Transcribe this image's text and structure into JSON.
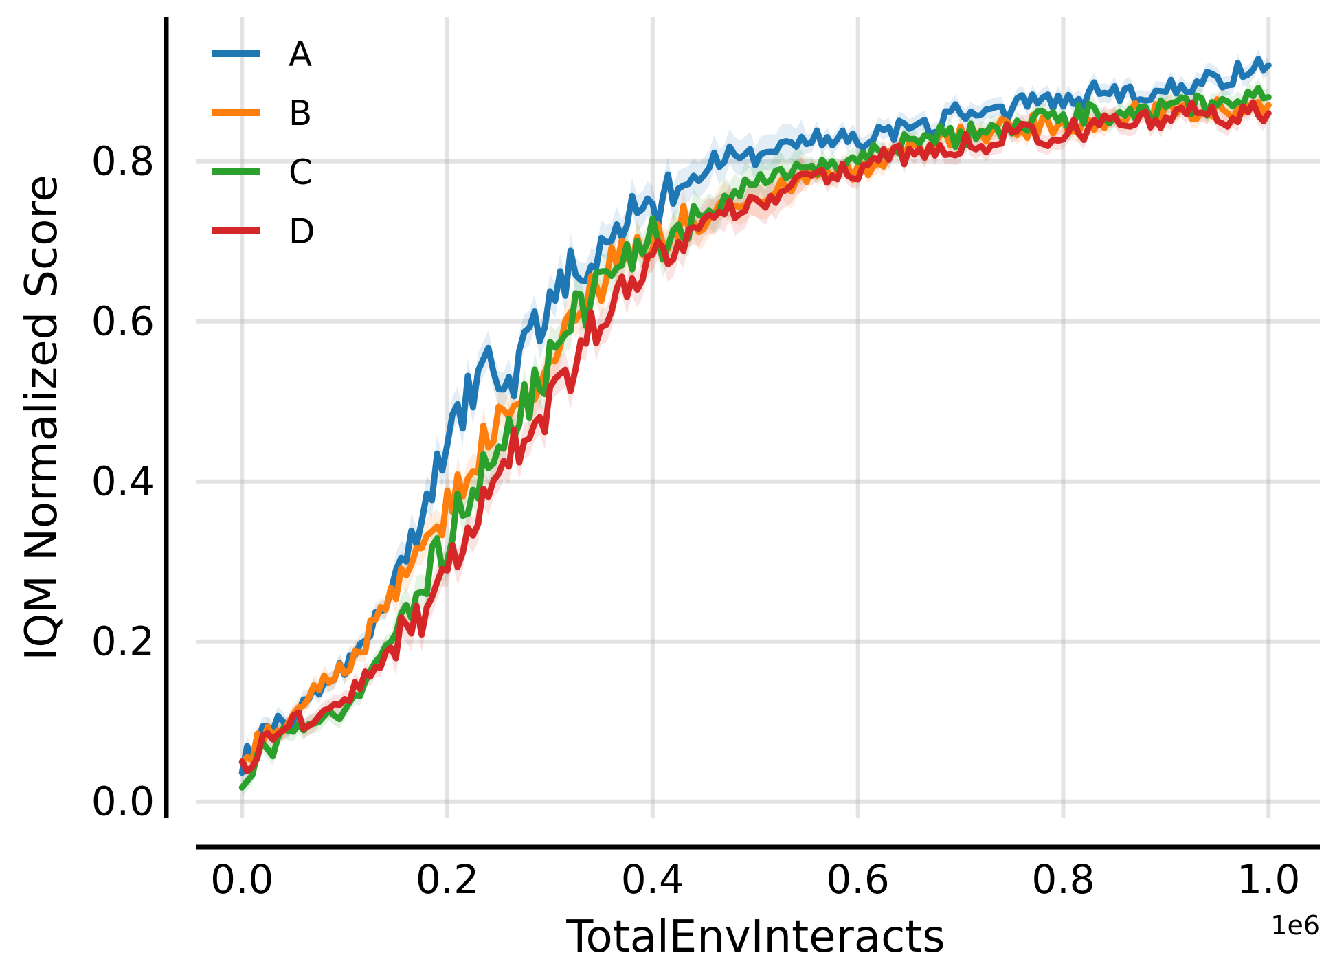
{
  "chart_data": {
    "type": "line",
    "xlabel": "TotalEnvInteracts",
    "ylabel": "IQM Normalized Score",
    "x_offset_label": "1e6",
    "xlim": [
      -0.045,
      1.05
    ],
    "ylim": [
      -0.02,
      0.98
    ],
    "xticks": [
      0.0,
      0.2,
      0.4,
      0.6,
      0.8,
      1.0
    ],
    "xtick_labels": [
      "0.0",
      "0.2",
      "0.4",
      "0.6",
      "0.8",
      "1.0"
    ],
    "yticks": [
      0.0,
      0.2,
      0.4,
      0.6,
      0.8
    ],
    "ytick_labels": [
      "0.0",
      "0.2",
      "0.4",
      "0.6",
      "0.8"
    ],
    "grid": true,
    "legend_position": "upper-left",
    "shaded_bands": true,
    "series": [
      {
        "name": "A",
        "color": "#1f77b4",
        "x": [
          0.0,
          0.02,
          0.04,
          0.06,
          0.08,
          0.1,
          0.12,
          0.14,
          0.16,
          0.18,
          0.2,
          0.22,
          0.24,
          0.26,
          0.28,
          0.3,
          0.32,
          0.34,
          0.36,
          0.38,
          0.4,
          0.42,
          0.44,
          0.46,
          0.48,
          0.5,
          0.52,
          0.54,
          0.56,
          0.58,
          0.6,
          0.62,
          0.64,
          0.66,
          0.68,
          0.7,
          0.72,
          0.74,
          0.76,
          0.78,
          0.8,
          0.82,
          0.84,
          0.86,
          0.88,
          0.9,
          0.92,
          0.94,
          0.96,
          0.98,
          1.0
        ],
        "y": [
          0.05,
          0.08,
          0.1,
          0.12,
          0.14,
          0.17,
          0.21,
          0.25,
          0.3,
          0.36,
          0.45,
          0.51,
          0.54,
          0.52,
          0.58,
          0.63,
          0.66,
          0.67,
          0.71,
          0.73,
          0.74,
          0.76,
          0.78,
          0.8,
          0.81,
          0.8,
          0.81,
          0.82,
          0.83,
          0.83,
          0.82,
          0.84,
          0.84,
          0.84,
          0.85,
          0.86,
          0.86,
          0.86,
          0.87,
          0.87,
          0.87,
          0.88,
          0.89,
          0.88,
          0.88,
          0.89,
          0.89,
          0.9,
          0.9,
          0.92,
          0.92
        ]
      },
      {
        "name": "B",
        "color": "#ff7f0e",
        "x": [
          0.0,
          0.02,
          0.04,
          0.06,
          0.08,
          0.1,
          0.12,
          0.14,
          0.16,
          0.18,
          0.2,
          0.22,
          0.24,
          0.26,
          0.28,
          0.3,
          0.32,
          0.34,
          0.36,
          0.38,
          0.4,
          0.42,
          0.44,
          0.46,
          0.48,
          0.5,
          0.52,
          0.54,
          0.56,
          0.58,
          0.6,
          0.62,
          0.64,
          0.66,
          0.68,
          0.7,
          0.72,
          0.74,
          0.76,
          0.78,
          0.8,
          0.82,
          0.84,
          0.86,
          0.88,
          0.9,
          0.92,
          0.94,
          0.96,
          0.98,
          1.0
        ],
        "y": [
          0.05,
          0.08,
          0.1,
          0.12,
          0.15,
          0.17,
          0.2,
          0.25,
          0.27,
          0.31,
          0.37,
          0.41,
          0.45,
          0.48,
          0.52,
          0.56,
          0.6,
          0.63,
          0.67,
          0.69,
          0.7,
          0.71,
          0.72,
          0.74,
          0.75,
          0.76,
          0.76,
          0.77,
          0.78,
          0.79,
          0.79,
          0.8,
          0.81,
          0.81,
          0.82,
          0.83,
          0.83,
          0.84,
          0.84,
          0.85,
          0.84,
          0.85,
          0.85,
          0.86,
          0.86,
          0.86,
          0.86,
          0.87,
          0.86,
          0.87,
          0.87
        ]
      },
      {
        "name": "C",
        "color": "#2ca02c",
        "x": [
          0.0,
          0.02,
          0.04,
          0.06,
          0.08,
          0.1,
          0.12,
          0.14,
          0.16,
          0.18,
          0.2,
          0.22,
          0.24,
          0.26,
          0.28,
          0.3,
          0.32,
          0.34,
          0.36,
          0.38,
          0.4,
          0.42,
          0.44,
          0.46,
          0.48,
          0.5,
          0.52,
          0.54,
          0.56,
          0.58,
          0.6,
          0.62,
          0.64,
          0.66,
          0.68,
          0.7,
          0.72,
          0.74,
          0.76,
          0.78,
          0.8,
          0.82,
          0.84,
          0.86,
          0.88,
          0.9,
          0.92,
          0.94,
          0.96,
          0.98,
          1.0
        ],
        "y": [
          0.03,
          0.06,
          0.08,
          0.09,
          0.1,
          0.12,
          0.15,
          0.19,
          0.24,
          0.28,
          0.33,
          0.38,
          0.43,
          0.47,
          0.5,
          0.55,
          0.6,
          0.63,
          0.66,
          0.68,
          0.7,
          0.71,
          0.73,
          0.74,
          0.76,
          0.77,
          0.78,
          0.79,
          0.79,
          0.8,
          0.8,
          0.81,
          0.82,
          0.82,
          0.83,
          0.83,
          0.84,
          0.84,
          0.85,
          0.85,
          0.85,
          0.86,
          0.86,
          0.86,
          0.87,
          0.86,
          0.87,
          0.87,
          0.87,
          0.88,
          0.88
        ]
      },
      {
        "name": "D",
        "color": "#d62728",
        "x": [
          0.0,
          0.02,
          0.04,
          0.06,
          0.08,
          0.1,
          0.12,
          0.14,
          0.16,
          0.18,
          0.2,
          0.22,
          0.24,
          0.26,
          0.28,
          0.3,
          0.32,
          0.34,
          0.36,
          0.38,
          0.4,
          0.42,
          0.44,
          0.46,
          0.48,
          0.5,
          0.52,
          0.54,
          0.56,
          0.58,
          0.6,
          0.62,
          0.64,
          0.66,
          0.68,
          0.7,
          0.72,
          0.74,
          0.76,
          0.78,
          0.8,
          0.82,
          0.84,
          0.86,
          0.88,
          0.9,
          0.92,
          0.94,
          0.96,
          0.98,
          1.0
        ],
        "y": [
          0.04,
          0.07,
          0.09,
          0.1,
          0.11,
          0.13,
          0.15,
          0.18,
          0.21,
          0.24,
          0.28,
          0.33,
          0.39,
          0.43,
          0.46,
          0.5,
          0.54,
          0.59,
          0.62,
          0.65,
          0.69,
          0.7,
          0.71,
          0.73,
          0.74,
          0.75,
          0.76,
          0.77,
          0.78,
          0.79,
          0.79,
          0.8,
          0.81,
          0.81,
          0.82,
          0.82,
          0.82,
          0.83,
          0.84,
          0.83,
          0.84,
          0.84,
          0.85,
          0.85,
          0.85,
          0.85,
          0.86,
          0.86,
          0.85,
          0.86,
          0.86
        ]
      }
    ]
  }
}
